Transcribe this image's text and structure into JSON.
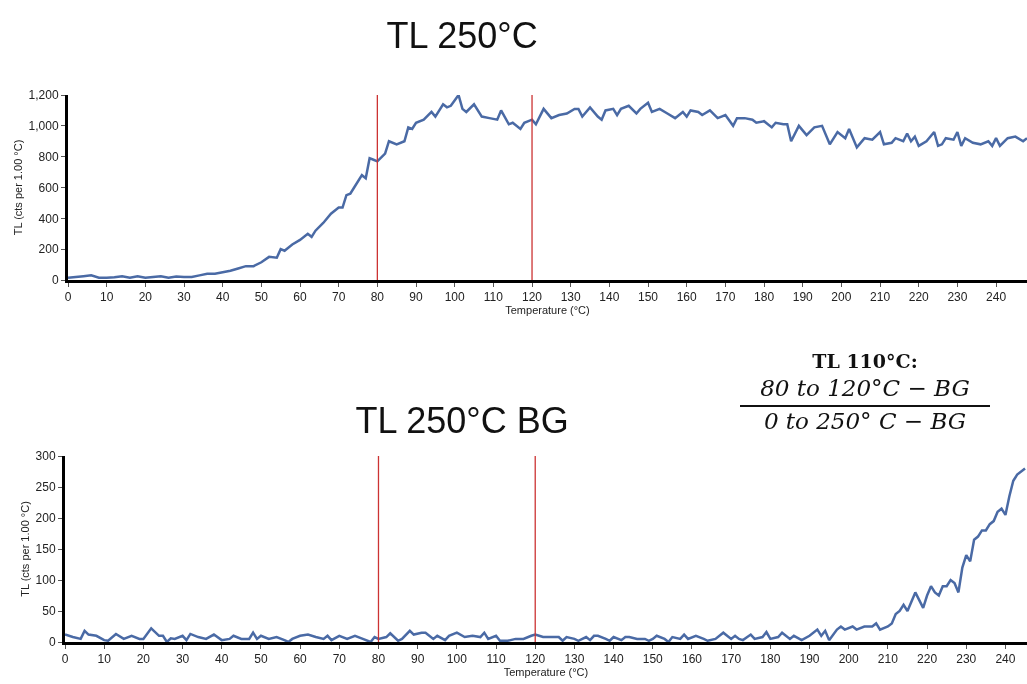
{
  "chart_data": [
    {
      "type": "line",
      "title": "TL 250°C",
      "xlabel": "Temperature (°C)",
      "ylabel": "TL (cts per 1.00 °C)",
      "xlim": [
        0,
        248
      ],
      "ylim": [
        0,
        1200
      ],
      "xticks": [
        0,
        10,
        20,
        30,
        40,
        50,
        60,
        70,
        80,
        90,
        100,
        110,
        120,
        130,
        140,
        150,
        160,
        170,
        180,
        190,
        200,
        210,
        220,
        230,
        240
      ],
      "yticks": [
        0,
        200,
        400,
        600,
        800,
        {
          "value": 1000,
          "label": "1,000"
        },
        {
          "value": 1200,
          "label": "1,200"
        }
      ],
      "grid": false,
      "marker": "none",
      "line_style": "solid",
      "ref_lines": [
        {
          "axis": "x",
          "value": 80,
          "color": "#cc3333"
        },
        {
          "axis": "x",
          "value": 120,
          "color": "#cc3333"
        }
      ],
      "x": [
        0,
        2,
        4,
        6,
        8,
        10,
        12,
        14,
        16,
        18,
        20,
        22,
        24,
        26,
        28,
        30,
        32,
        34,
        36,
        38,
        40,
        42,
        44,
        46,
        48,
        50,
        52,
        54,
        55,
        56,
        58,
        60,
        62,
        63,
        64,
        66,
        68,
        70,
        71,
        72,
        73,
        74,
        76,
        77,
        78,
        79,
        80,
        82,
        83,
        85,
        87,
        88,
        89,
        90,
        92,
        94,
        95,
        97,
        98,
        99,
        101,
        102,
        103,
        105,
        107,
        109,
        111,
        112,
        114,
        115,
        117,
        118,
        120,
        121,
        123,
        125,
        127,
        129,
        131,
        132,
        133,
        135,
        137,
        138,
        139,
        141,
        142,
        143,
        145,
        147,
        148,
        150,
        151,
        153,
        155,
        157,
        159,
        160,
        161,
        163,
        164,
        166,
        168,
        169,
        170,
        172,
        173,
        175,
        177,
        178,
        180,
        182,
        183,
        185,
        186,
        187,
        189,
        191,
        193,
        195,
        197,
        199,
        201,
        202,
        204,
        206,
        208,
        210,
        211,
        213,
        214,
        216,
        217,
        218,
        219,
        220,
        222,
        224,
        225,
        226,
        227,
        229,
        230,
        231,
        232,
        234,
        236,
        238,
        239,
        240,
        241,
        243,
        245,
        247,
        248
      ],
      "series": [
        {
          "color": "#4a6aa5",
          "values": [
            15,
            20,
            25,
            30,
            15,
            15,
            18,
            25,
            15,
            25,
            15,
            20,
            25,
            15,
            22,
            20,
            20,
            30,
            40,
            40,
            50,
            60,
            75,
            90,
            90,
            115,
            150,
            145,
            200,
            190,
            230,
            260,
            300,
            280,
            320,
            370,
            430,
            470,
            470,
            550,
            560,
            600,
            680,
            660,
            790,
            780,
            770,
            820,
            900,
            880,
            900,
            990,
            980,
            1020,
            1040,
            1090,
            1060,
            1140,
            1120,
            1130,
            1200,
            1110,
            1090,
            1140,
            1060,
            1050,
            1040,
            1100,
            1010,
            1020,
            980,
            1020,
            1040,
            1010,
            1110,
            1050,
            1070,
            1080,
            1110,
            1110,
            1060,
            1120,
            1060,
            1040,
            1100,
            1110,
            1070,
            1110,
            1130,
            1080,
            1110,
            1150,
            1090,
            1110,
            1080,
            1050,
            1090,
            1060,
            1100,
            1090,
            1070,
            1100,
            1050,
            1060,
            1070,
            1000,
            1050,
            1050,
            1040,
            1020,
            1030,
            990,
            1020,
            1010,
            1010,
            900,
            1000,
            940,
            990,
            1000,
            880,
            960,
            920,
            980,
            860,
            920,
            910,
            960,
            880,
            890,
            920,
            900,
            950,
            900,
            930,
            870,
            900,
            960,
            870,
            880,
            920,
            910,
            960,
            870,
            920,
            890,
            880,
            900,
            870,
            920,
            870,
            920,
            930,
            900,
            920
          ]
        }
      ]
    },
    {
      "type": "line",
      "title": "TL 250°C BG",
      "xlabel": "Temperature (°C)",
      "ylabel": "TL (cts per 1.00 °C)",
      "xlim": [
        0,
        245.5
      ],
      "ylim": [
        0,
        300
      ],
      "xticks": [
        0,
        10,
        20,
        30,
        40,
        50,
        60,
        70,
        80,
        90,
        100,
        110,
        120,
        130,
        140,
        150,
        160,
        170,
        180,
        190,
        200,
        210,
        220,
        230,
        240
      ],
      "yticks": [
        0,
        50,
        100,
        150,
        200,
        250,
        300
      ],
      "grid": false,
      "marker": "none",
      "line_style": "solid",
      "ref_lines": [
        {
          "axis": "x",
          "value": 80,
          "color": "#cc3333"
        },
        {
          "axis": "x",
          "value": 120,
          "color": "#cc3333"
        }
      ],
      "annotations": [
        "TL 110°C:",
        "80 to 120°C − BG",
        "0 to 250° C − BG"
      ],
      "x": [
        0,
        2,
        4,
        5,
        6,
        8,
        10,
        11,
        13,
        15,
        17,
        19,
        20,
        22,
        24,
        25,
        26,
        27,
        28,
        30,
        31,
        32,
        34,
        36,
        38,
        40,
        42,
        43,
        45,
        47,
        48,
        49,
        50,
        52,
        54,
        56,
        57,
        58,
        60,
        62,
        64,
        66,
        67,
        68,
        70,
        72,
        74,
        76,
        78,
        79,
        80,
        82,
        83,
        85,
        86,
        88,
        89,
        91,
        92,
        94,
        95,
        97,
        98,
        100,
        102,
        104,
        106,
        107,
        108,
        110,
        111,
        113,
        115,
        117,
        119,
        120,
        121,
        122,
        124,
        126,
        127,
        128,
        130,
        131,
        133,
        134,
        135,
        136,
        138,
        139,
        140,
        142,
        143,
        144,
        146,
        148,
        149,
        150,
        151,
        153,
        154,
        155,
        157,
        158,
        159,
        161,
        163,
        164,
        166,
        168,
        170,
        171,
        172,
        173,
        175,
        176,
        178,
        179,
        180,
        182,
        183,
        185,
        186,
        188,
        190,
        192,
        193,
        194,
        195,
        197,
        198,
        199,
        201,
        202,
        204,
        206,
        207,
        208,
        210,
        211,
        212,
        213,
        214,
        215,
        217,
        219,
        220,
        221,
        222,
        223,
        224,
        225,
        226,
        227,
        228,
        229,
        230,
        231,
        232,
        233,
        234,
        235,
        236,
        237,
        238,
        239,
        240,
        241,
        242,
        243,
        245
      ],
      "series": [
        {
          "color": "#4a6aa5",
          "values": [
            12,
            8,
            5,
            18,
            12,
            10,
            3,
            2,
            13,
            5,
            10,
            5,
            5,
            22,
            10,
            10,
            0,
            6,
            5,
            10,
            3,
            13,
            8,
            5,
            12,
            3,
            5,
            10,
            5,
            5,
            15,
            5,
            10,
            5,
            8,
            3,
            0,
            5,
            10,
            12,
            8,
            5,
            10,
            3,
            10,
            5,
            10,
            5,
            0,
            8,
            5,
            8,
            14,
            2,
            5,
            18,
            12,
            15,
            15,
            5,
            10,
            3,
            10,
            15,
            8,
            10,
            8,
            15,
            5,
            10,
            2,
            2,
            5,
            5,
            10,
            12,
            10,
            8,
            8,
            8,
            2,
            8,
            5,
            2,
            8,
            3,
            10,
            10,
            5,
            2,
            8,
            3,
            8,
            8,
            5,
            5,
            2,
            5,
            10,
            5,
            0,
            8,
            5,
            12,
            5,
            10,
            5,
            2,
            5,
            15,
            5,
            10,
            5,
            3,
            12,
            5,
            8,
            16,
            5,
            8,
            15,
            5,
            10,
            3,
            10,
            20,
            10,
            18,
            3,
            20,
            25,
            20,
            25,
            20,
            25,
            25,
            30,
            20,
            25,
            30,
            45,
            50,
            60,
            50,
            80,
            55,
            75,
            90,
            80,
            75,
            90,
            90,
            100,
            95,
            80,
            120,
            140,
            130,
            165,
            170,
            180,
            180,
            190,
            195,
            210,
            215,
            205,
            235,
            260,
            270,
            280
          ]
        }
      ]
    }
  ]
}
